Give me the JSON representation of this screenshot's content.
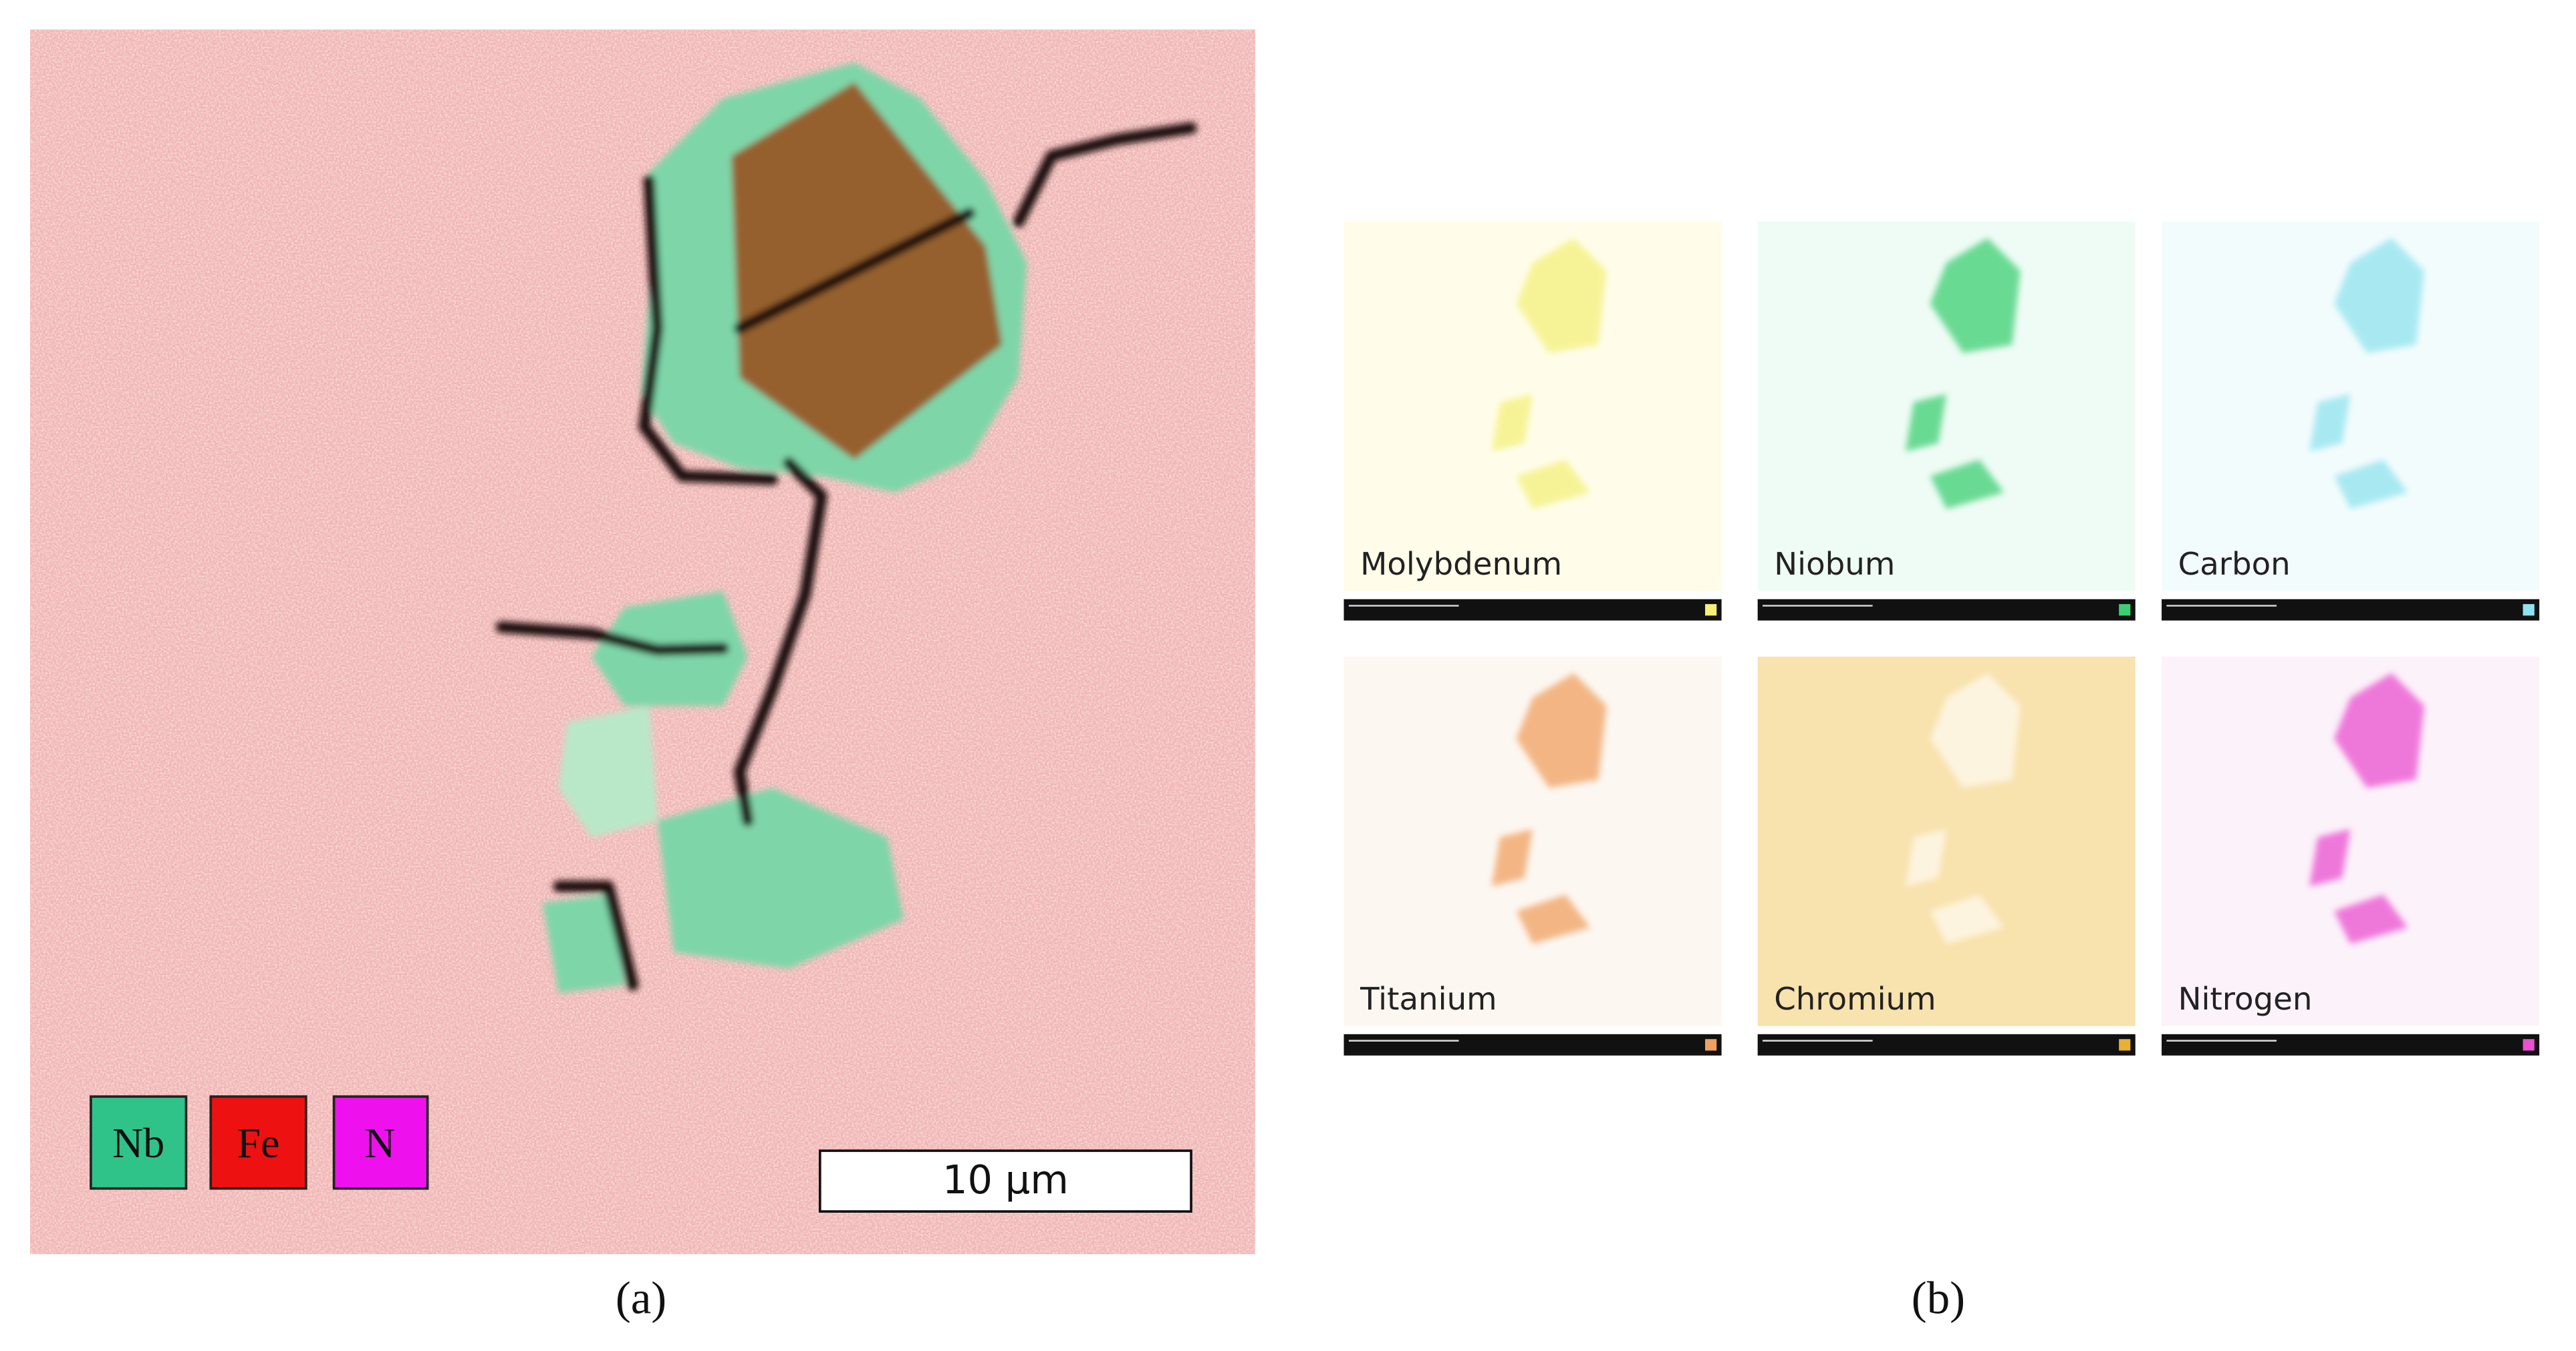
{
  "panel_a": {
    "legend": [
      "Nb",
      "Fe",
      "N"
    ],
    "scale_bar": "10 μm",
    "label": "(a)"
  },
  "panel_b": {
    "maps": [
      {
        "label": "Molybdenum"
      },
      {
        "label": "Niobum"
      },
      {
        "label": "Carbon"
      },
      {
        "label": "Titanium"
      },
      {
        "label": "Chromium"
      },
      {
        "label": "Nitrogen"
      }
    ],
    "label": "(b)"
  }
}
